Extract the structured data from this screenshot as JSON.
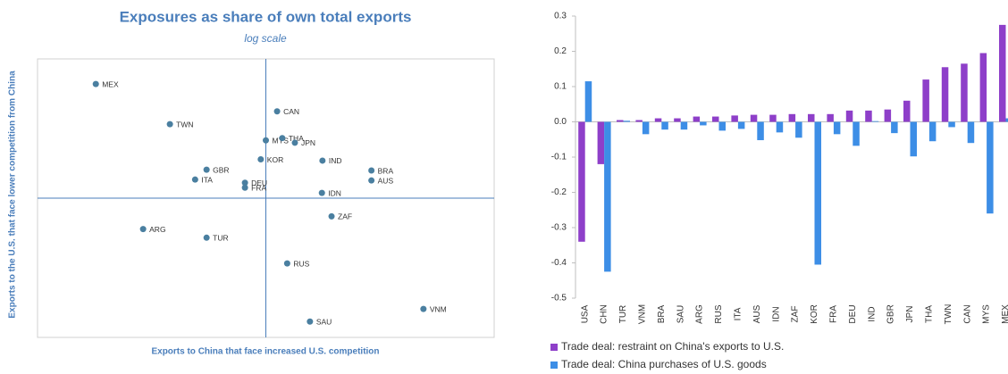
{
  "chart_data": [
    {
      "type": "scatter",
      "title": "Exposures as share of own total exports",
      "subtitle": "log scale",
      "x_label": "Exports to China that face increased U.S. competition",
      "y_label": "Exports to the U.S. that face lower competition from China",
      "log_x": true,
      "log_y": true,
      "xlim": [
        0.1,
        10
      ],
      "ylim": [
        0.1,
        10
      ],
      "reference_lines": {
        "x": 1,
        "y": 1
      },
      "color": "#4a7fa0",
      "labels": [
        "MEX",
        "TWN",
        "CAN",
        "MYS",
        "THA",
        "JPN",
        "KOR",
        "IND",
        "BRA",
        "AUS",
        "GBR",
        "ITA",
        "DEU",
        "FRA",
        "IDN",
        "ZAF",
        "ARG",
        "TUR",
        "RUS",
        "VNM",
        "SAU"
      ],
      "x": [
        0.18,
        0.38,
        1.12,
        1.0,
        1.18,
        1.34,
        0.95,
        1.77,
        2.9,
        2.9,
        0.55,
        0.49,
        0.81,
        0.81,
        1.76,
        1.94,
        0.29,
        0.55,
        1.24,
        4.9,
        1.56
      ],
      "y": [
        6.6,
        3.4,
        4.2,
        2.6,
        2.7,
        2.5,
        1.9,
        1.86,
        1.58,
        1.34,
        1.6,
        1.36,
        1.29,
        1.19,
        1.09,
        0.74,
        0.6,
        0.52,
        0.34,
        0.16,
        0.13
      ]
    },
    {
      "type": "bar",
      "ylim": [
        -0.5,
        0.3
      ],
      "yticks": [
        0.3,
        0.2,
        0.1,
        {
          "value": 0,
          "label": "0.0"
        },
        -0.1,
        -0.2,
        -0.3,
        -0.4,
        -0.5
      ],
      "categories": [
        "USA",
        "CHN",
        "TUR",
        "VNM",
        "BRA",
        "SAU",
        "ARG",
        "RUS",
        "ITA",
        "AUS",
        "IDN",
        "ZAF",
        "KOR",
        "FRA",
        "DEU",
        "IND",
        "GBR",
        "JPN",
        "THA",
        "TWN",
        "CAN",
        "MYS",
        "MEX"
      ],
      "series": [
        {
          "name": "Trade deal: restraint on China's exports to U.S.",
          "color": "#8e3fc9",
          "values": [
            -0.34,
            -0.12,
            0.005,
            0.005,
            0.01,
            0.01,
            0.015,
            0.015,
            0.018,
            0.02,
            0.02,
            0.022,
            0.022,
            0.022,
            0.032,
            0.032,
            0.035,
            0.06,
            0.12,
            0.155,
            0.165,
            0.195,
            0.275
          ]
        },
        {
          "name": "Trade deal: China purchases of U.S. goods",
          "color": "#3d8ee6",
          "values": [
            0.115,
            -0.425,
            0.003,
            -0.035,
            -0.022,
            -0.022,
            -0.01,
            -0.025,
            -0.02,
            -0.052,
            -0.03,
            -0.045,
            -0.405,
            -0.035,
            -0.068,
            0.002,
            -0.032,
            -0.098,
            -0.055,
            -0.015,
            -0.06,
            -0.26,
            0.01
          ]
        }
      ]
    }
  ]
}
